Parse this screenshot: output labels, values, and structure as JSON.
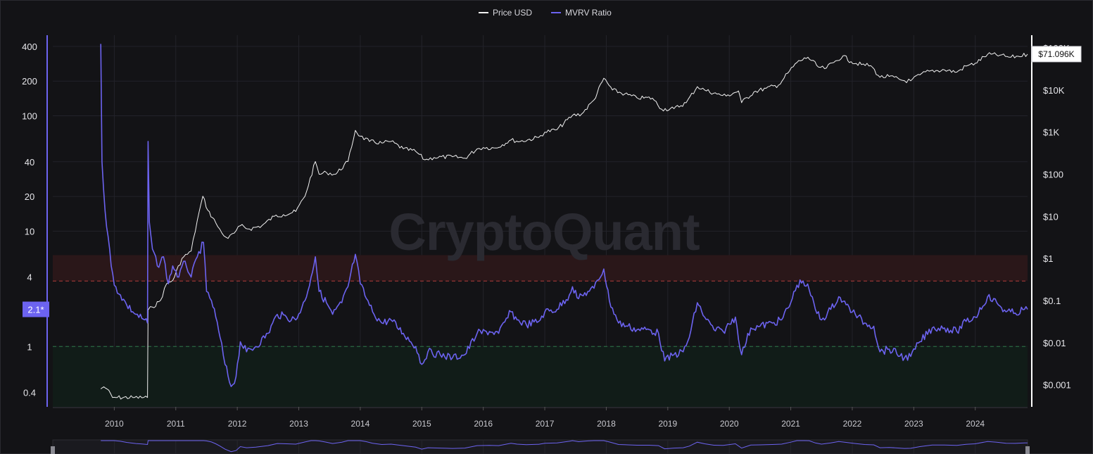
{
  "brand": {
    "watermark": "CryptoQuant"
  },
  "colors": {
    "background": "#131316",
    "price_line": "#f2f2f2",
    "mvrv_line": "#6c63f0",
    "overvalued_zone": "#2a1719",
    "overvalued_line": "#b03a3a",
    "undervalued_zone": "#111c18",
    "undervalued_line": "#2f7a48",
    "grid": "#23232a"
  },
  "chart_data": {
    "type": "line",
    "legend": {
      "position": "top-center",
      "items": [
        {
          "label": "Price USD",
          "color": "#f2f2f2"
        },
        {
          "label": "MVRV Ratio",
          "color": "#6c63f0"
        }
      ]
    },
    "x_axis": {
      "scale": "time",
      "range": [
        2009.0,
        2024.85
      ],
      "ticks": [
        "2010",
        "2011",
        "2012",
        "2013",
        "2014",
        "2015",
        "2016",
        "2017",
        "2018",
        "2019",
        "2020",
        "2021",
        "2022",
        "2023",
        "2024"
      ]
    },
    "y_left": {
      "scale": "log",
      "series": "MVRV Ratio",
      "range": [
        0.3,
        500
      ],
      "ticks": [
        {
          "value": 0.4,
          "label": "0.4"
        },
        {
          "value": 1,
          "label": "1"
        },
        {
          "value": 4,
          "label": "4"
        },
        {
          "value": 10,
          "label": "10"
        },
        {
          "value": 20,
          "label": "20"
        },
        {
          "value": 40,
          "label": "40"
        },
        {
          "value": 100,
          "label": "100"
        },
        {
          "value": 200,
          "label": "200"
        },
        {
          "value": 400,
          "label": "400"
        }
      ],
      "current_value_label": "2.1*",
      "current_value": 2.1
    },
    "y_right": {
      "scale": "log",
      "series": "Price USD",
      "range": [
        0.0003,
        200000
      ],
      "ticks": [
        {
          "value": 0.001,
          "label": "$0.001"
        },
        {
          "value": 0.01,
          "label": "$0.01"
        },
        {
          "value": 0.1,
          "label": "$0.1"
        },
        {
          "value": 1,
          "label": "$1"
        },
        {
          "value": 10,
          "label": "$10"
        },
        {
          "value": 100,
          "label": "$100"
        },
        {
          "value": 1000,
          "label": "$1K"
        },
        {
          "value": 10000,
          "label": "$10K"
        },
        {
          "value": 100000,
          "label": "$100K"
        }
      ],
      "current_value_label": "$71.096K",
      "current_value": 71096
    },
    "zones": [
      {
        "name": "overvalued",
        "from": 3.7,
        "to": 6.2,
        "reference_line": 3.7
      },
      {
        "name": "undervalued",
        "from": 0.3,
        "to": 1.0,
        "reference_line": 1.0
      }
    ],
    "series": [
      {
        "name": "Price USD",
        "axis": "right",
        "points": [
          [
            2009.78,
            0.0008
          ],
          [
            2009.83,
            0.0009
          ],
          [
            2009.88,
            0.0008
          ],
          [
            2009.97,
            0.0005
          ],
          [
            2010.05,
            0.0005
          ],
          [
            2010.3,
            0.0005
          ],
          [
            2010.54,
            0.0005
          ],
          [
            2010.55,
            0.06
          ],
          [
            2010.62,
            0.07
          ],
          [
            2010.75,
            0.1
          ],
          [
            2010.85,
            0.25
          ],
          [
            2010.95,
            0.3
          ],
          [
            2011.1,
            1.0
          ],
          [
            2011.25,
            1.5
          ],
          [
            2011.35,
            8
          ],
          [
            2011.44,
            30
          ],
          [
            2011.52,
            14
          ],
          [
            2011.65,
            7
          ],
          [
            2011.75,
            4
          ],
          [
            2011.85,
            3
          ],
          [
            2011.95,
            4
          ],
          [
            2012.05,
            6
          ],
          [
            2012.2,
            5
          ],
          [
            2012.4,
            6
          ],
          [
            2012.6,
            10
          ],
          [
            2012.75,
            11
          ],
          [
            2012.95,
            13
          ],
          [
            2013.1,
            30
          ],
          [
            2013.27,
            200
          ],
          [
            2013.33,
            100
          ],
          [
            2013.45,
            110
          ],
          [
            2013.6,
            100
          ],
          [
            2013.8,
            200
          ],
          [
            2013.92,
            1100
          ],
          [
            2014.0,
            800
          ],
          [
            2014.15,
            600
          ],
          [
            2014.35,
            550
          ],
          [
            2014.5,
            600
          ],
          [
            2014.7,
            400
          ],
          [
            2014.9,
            350
          ],
          [
            2015.05,
            220
          ],
          [
            2015.2,
            250
          ],
          [
            2015.5,
            260
          ],
          [
            2015.7,
            240
          ],
          [
            2015.9,
            400
          ],
          [
            2016.0,
            430
          ],
          [
            2016.2,
            420
          ],
          [
            2016.45,
            650
          ],
          [
            2016.6,
            600
          ],
          [
            2016.9,
            750
          ],
          [
            2017.0,
            1000
          ],
          [
            2017.2,
            1150
          ],
          [
            2017.45,
            2500
          ],
          [
            2017.6,
            2700
          ],
          [
            2017.8,
            5800
          ],
          [
            2017.96,
            19000
          ],
          [
            2018.1,
            10000
          ],
          [
            2018.3,
            8000
          ],
          [
            2018.5,
            6500
          ],
          [
            2018.75,
            6400
          ],
          [
            2018.9,
            3500
          ],
          [
            2019.1,
            3600
          ],
          [
            2019.3,
            5000
          ],
          [
            2019.48,
            12000
          ],
          [
            2019.6,
            10000
          ],
          [
            2019.8,
            8000
          ],
          [
            2019.95,
            7200
          ],
          [
            2020.15,
            9500
          ],
          [
            2020.2,
            5000
          ],
          [
            2020.4,
            9000
          ],
          [
            2020.6,
            11000
          ],
          [
            2020.8,
            13000
          ],
          [
            2020.95,
            25000
          ],
          [
            2021.1,
            45000
          ],
          [
            2021.28,
            60000
          ],
          [
            2021.45,
            35000
          ],
          [
            2021.55,
            32000
          ],
          [
            2021.7,
            45000
          ],
          [
            2021.85,
            65000
          ],
          [
            2021.98,
            47000
          ],
          [
            2022.15,
            40000
          ],
          [
            2022.3,
            38000
          ],
          [
            2022.45,
            20000
          ],
          [
            2022.6,
            21000
          ],
          [
            2022.85,
            16500
          ],
          [
            2022.95,
            16500
          ],
          [
            2023.1,
            23000
          ],
          [
            2023.25,
            28000
          ],
          [
            2023.5,
            30000
          ],
          [
            2023.7,
            26500
          ],
          [
            2023.85,
            37000
          ],
          [
            2024.0,
            43000
          ],
          [
            2024.2,
            70000
          ],
          [
            2024.4,
            67000
          ],
          [
            2024.55,
            60000
          ],
          [
            2024.7,
            63000
          ],
          [
            2024.85,
            71096
          ]
        ]
      },
      {
        "name": "MVRV Ratio",
        "axis": "left",
        "points": [
          [
            2009.78,
            420
          ],
          [
            2009.8,
            40
          ],
          [
            2009.85,
            15
          ],
          [
            2009.9,
            9
          ],
          [
            2009.95,
            5
          ],
          [
            2010.0,
            3.4
          ],
          [
            2010.1,
            2.8
          ],
          [
            2010.2,
            2.3
          ],
          [
            2010.35,
            1.9
          ],
          [
            2010.45,
            1.75
          ],
          [
            2010.54,
            1.6
          ],
          [
            2010.55,
            60
          ],
          [
            2010.57,
            12
          ],
          [
            2010.62,
            7
          ],
          [
            2010.7,
            5
          ],
          [
            2010.8,
            6
          ],
          [
            2010.88,
            3.5
          ],
          [
            2010.95,
            5
          ],
          [
            2011.05,
            4
          ],
          [
            2011.15,
            5.5
          ],
          [
            2011.25,
            4
          ],
          [
            2011.35,
            6
          ],
          [
            2011.45,
            8
          ],
          [
            2011.5,
            3
          ],
          [
            2011.58,
            2.5
          ],
          [
            2011.65,
            1.8
          ],
          [
            2011.72,
            1.2
          ],
          [
            2011.8,
            0.7
          ],
          [
            2011.9,
            0.45
          ],
          [
            2011.98,
            0.55
          ],
          [
            2012.05,
            1.1
          ],
          [
            2012.15,
            0.9
          ],
          [
            2012.3,
            1.0
          ],
          [
            2012.5,
            1.3
          ],
          [
            2012.65,
            1.9
          ],
          [
            2012.8,
            1.8
          ],
          [
            2012.95,
            1.7
          ],
          [
            2013.1,
            2.5
          ],
          [
            2013.2,
            4.0
          ],
          [
            2013.27,
            6.0
          ],
          [
            2013.33,
            3.0
          ],
          [
            2013.45,
            2.4
          ],
          [
            2013.55,
            1.9
          ],
          [
            2013.7,
            2.4
          ],
          [
            2013.8,
            3.3
          ],
          [
            2013.92,
            6.3
          ],
          [
            2014.0,
            3.5
          ],
          [
            2014.1,
            2.6
          ],
          [
            2014.2,
            2.0
          ],
          [
            2014.35,
            1.6
          ],
          [
            2014.5,
            1.7
          ],
          [
            2014.7,
            1.3
          ],
          [
            2014.9,
            1.0
          ],
          [
            2015.0,
            0.7
          ],
          [
            2015.1,
            0.9
          ],
          [
            2015.3,
            0.85
          ],
          [
            2015.5,
            0.8
          ],
          [
            2015.7,
            0.85
          ],
          [
            2015.9,
            1.3
          ],
          [
            2016.1,
            1.35
          ],
          [
            2016.25,
            1.3
          ],
          [
            2016.45,
            2.0
          ],
          [
            2016.55,
            1.7
          ],
          [
            2016.7,
            1.55
          ],
          [
            2016.9,
            1.65
          ],
          [
            2017.0,
            2.0
          ],
          [
            2017.2,
            2.1
          ],
          [
            2017.4,
            2.8
          ],
          [
            2017.45,
            3.3
          ],
          [
            2017.55,
            2.6
          ],
          [
            2017.7,
            3.0
          ],
          [
            2017.8,
            3.2
          ],
          [
            2017.96,
            4.7
          ],
          [
            2018.05,
            2.5
          ],
          [
            2018.2,
            1.6
          ],
          [
            2018.35,
            1.5
          ],
          [
            2018.5,
            1.4
          ],
          [
            2018.7,
            1.4
          ],
          [
            2018.85,
            1.3
          ],
          [
            2018.95,
            0.75
          ],
          [
            2019.1,
            0.85
          ],
          [
            2019.25,
            0.9
          ],
          [
            2019.35,
            1.2
          ],
          [
            2019.48,
            2.4
          ],
          [
            2019.6,
            1.8
          ],
          [
            2019.75,
            1.4
          ],
          [
            2019.9,
            1.35
          ],
          [
            2020.1,
            1.8
          ],
          [
            2020.2,
            0.85
          ],
          [
            2020.35,
            1.45
          ],
          [
            2020.5,
            1.5
          ],
          [
            2020.7,
            1.6
          ],
          [
            2020.85,
            1.7
          ],
          [
            2021.0,
            2.4
          ],
          [
            2021.1,
            3.4
          ],
          [
            2021.2,
            3.7
          ],
          [
            2021.3,
            3.1
          ],
          [
            2021.4,
            2.1
          ],
          [
            2021.5,
            1.7
          ],
          [
            2021.65,
            2.1
          ],
          [
            2021.78,
            2.7
          ],
          [
            2021.9,
            2.3
          ],
          [
            2022.05,
            1.9
          ],
          [
            2022.2,
            1.6
          ],
          [
            2022.35,
            1.5
          ],
          [
            2022.45,
            0.9
          ],
          [
            2022.6,
            0.95
          ],
          [
            2022.85,
            0.8
          ],
          [
            2022.95,
            0.82
          ],
          [
            2023.1,
            1.1
          ],
          [
            2023.3,
            1.45
          ],
          [
            2023.5,
            1.45
          ],
          [
            2023.7,
            1.35
          ],
          [
            2023.85,
            1.65
          ],
          [
            2024.0,
            1.8
          ],
          [
            2024.2,
            2.7
          ],
          [
            2024.35,
            2.4
          ],
          [
            2024.5,
            2.0
          ],
          [
            2024.65,
            1.95
          ],
          [
            2024.8,
            2.1
          ],
          [
            2024.85,
            2.1
          ]
        ]
      }
    ]
  },
  "navigator": {
    "label": "range-navigator"
  }
}
